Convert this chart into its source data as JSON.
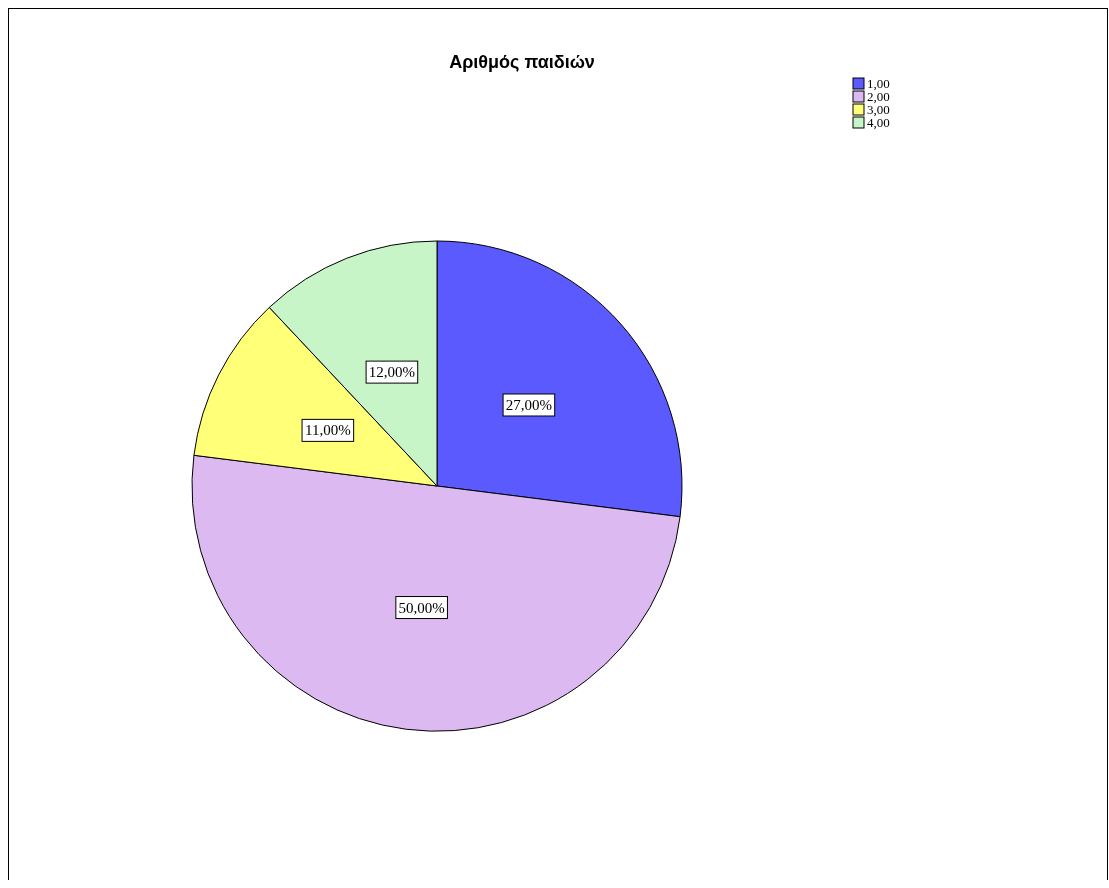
{
  "chart_data": {
    "type": "pie",
    "title": "Αριθμός παιδιών",
    "categories": [
      "1,00",
      "2,00",
      "3,00",
      "4,00"
    ],
    "values": [
      27,
      50,
      11,
      12
    ],
    "colors": [
      "#5a5aff",
      "#dcb9f0",
      "#ffff78",
      "#c8f5c8"
    ],
    "value_labels": [
      "27,00%",
      "50,00%",
      "11,00%",
      "12,00%"
    ],
    "legend": "top right"
  }
}
